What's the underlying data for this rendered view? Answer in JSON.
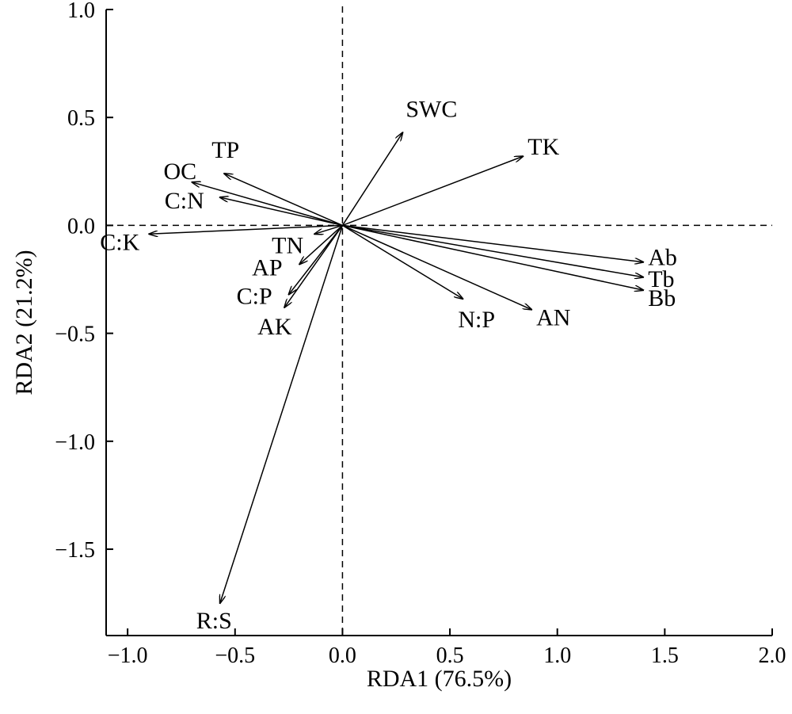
{
  "chart_data": {
    "type": "scatter",
    "subtype": "rda-biplot",
    "xlabel": "RDA1 (76.5%)",
    "ylabel": "RDA2 (21.2%)",
    "xlim": [
      -1.1,
      2.0
    ],
    "ylim": [
      -1.9,
      1.0
    ],
    "xticks": [
      -1.0,
      -0.5,
      0.0,
      0.5,
      1.0,
      1.5,
      2.0
    ],
    "xtick_labels": [
      "−1.0",
      "−0.5",
      "0.0",
      "0.5",
      "1.0",
      "1.5",
      "2.0"
    ],
    "yticks": [
      1.0,
      0.5,
      0.0,
      -0.5,
      -1.0,
      -1.5
    ],
    "ytick_labels": [
      "1.0",
      "0.5",
      "0.0",
      "−0.5",
      "−1.0",
      "−1.5"
    ],
    "grid": false,
    "zero_lines": "dashed",
    "vectors": [
      {
        "label": "SWC",
        "x": 0.28,
        "y": 0.43
      },
      {
        "label": "TK",
        "x": 0.84,
        "y": 0.32
      },
      {
        "label": "TP",
        "x": -0.55,
        "y": 0.24
      },
      {
        "label": "OC",
        "x": -0.7,
        "y": 0.2
      },
      {
        "label": "C:N",
        "x": -0.57,
        "y": 0.13
      },
      {
        "label": "C:K",
        "x": -0.9,
        "y": -0.04
      },
      {
        "label": "TN",
        "x": -0.13,
        "y": -0.04
      },
      {
        "label": "AP",
        "x": -0.2,
        "y": -0.18
      },
      {
        "label": "C:P",
        "x": -0.25,
        "y": -0.32
      },
      {
        "label": "AK",
        "x": -0.27,
        "y": -0.38
      },
      {
        "label": "R:S",
        "x": -0.57,
        "y": -1.75
      },
      {
        "label": "N:P",
        "x": 0.56,
        "y": -0.34
      },
      {
        "label": "AN",
        "x": 0.88,
        "y": -0.39
      },
      {
        "label": "Ab",
        "x": 1.4,
        "y": -0.17
      },
      {
        "label": "Tb",
        "x": 1.4,
        "y": -0.24
      },
      {
        "label": "Bb",
        "x": 1.4,
        "y": -0.3
      }
    ]
  }
}
